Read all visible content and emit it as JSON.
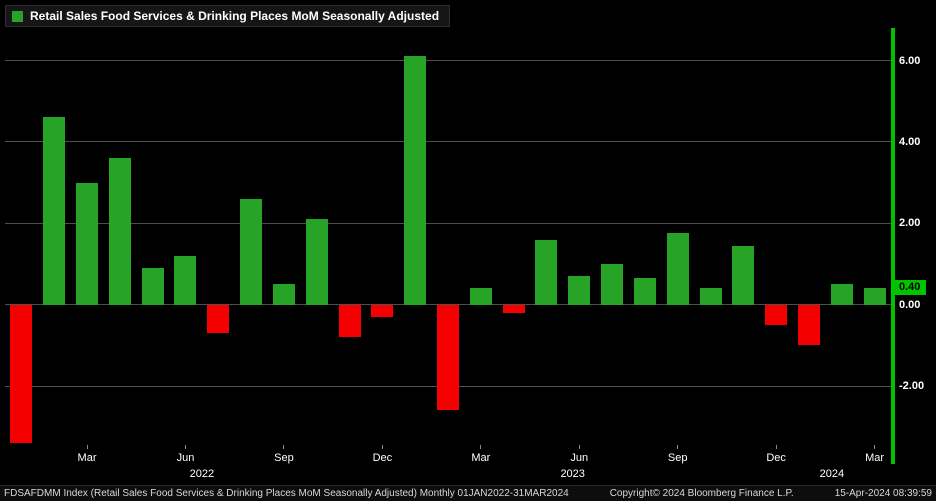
{
  "colors": {
    "background": "#000000",
    "positive_bar": "#27a327",
    "negative_bar": "#f50000",
    "axis_line": "#00c300",
    "gridline": "#4f4f4f",
    "text": "#ffffff",
    "footer_text": "#d8d8d8",
    "last_value_text": "#000000"
  },
  "legend": {
    "label": "Retail Sales Food Services & Drinking Places MoM Seasonally Adjusted"
  },
  "footer": {
    "left": "FDSAFDMM Index (Retail Sales Food Services & Drinking Places MoM Seasonally Adjusted)  Monthly 01JAN2022-31MAR2024",
    "copyright": "Copyright© 2024 Bloomberg Finance L.P.",
    "timestamp": "15-Apr-2024 08:39:59"
  },
  "chart_data": {
    "type": "bar",
    "title": "Retail Sales Food Services & Drinking Places MoM Seasonally Adjusted",
    "xlabel": "",
    "ylabel": "",
    "x": [
      "Jan 2022",
      "Feb 2022",
      "Mar 2022",
      "Apr 2022",
      "May 2022",
      "Jun 2022",
      "Jul 2022",
      "Aug 2022",
      "Sep 2022",
      "Oct 2022",
      "Nov 2022",
      "Dec 2022",
      "Jan 2023",
      "Feb 2023",
      "Mar 2023",
      "Apr 2023",
      "May 2023",
      "Jun 2023",
      "Jul 2023",
      "Aug 2023",
      "Sep 2023",
      "Oct 2023",
      "Nov 2023",
      "Dec 2023",
      "Jan 2024",
      "Feb 2024",
      "Mar 2024"
    ],
    "values": [
      -3.4,
      4.6,
      3.0,
      3.6,
      0.9,
      1.2,
      -0.7,
      2.6,
      0.5,
      2.1,
      -0.8,
      -0.3,
      6.1,
      -2.6,
      0.4,
      -0.2,
      1.6,
      0.7,
      1.0,
      0.65,
      1.75,
      0.4,
      1.45,
      -0.5,
      -1.0,
      0.5,
      0.4
    ],
    "ylim": [
      -3.45,
      6.75
    ],
    "yticks": [
      6.0,
      4.0,
      2.0,
      0.0,
      -2.0
    ],
    "ytick_labels": [
      "6.00",
      "4.00",
      "2.00",
      "0.00",
      "-2.00"
    ],
    "last_value": 0.4,
    "last_value_label": "0.40",
    "grid": "horizontal",
    "legend_position": "top-left",
    "x_ticks": [
      {
        "pos": 2,
        "label": "Mar"
      },
      {
        "pos": 5,
        "label": "Jun"
      },
      {
        "pos": 8,
        "label": "Sep"
      },
      {
        "pos": 11,
        "label": "Dec"
      },
      {
        "pos": 14,
        "label": "Mar"
      },
      {
        "pos": 17,
        "label": "Jun"
      },
      {
        "pos": 20,
        "label": "Sep"
      },
      {
        "pos": 23,
        "label": "Dec"
      },
      {
        "pos": 26,
        "label": "Mar"
      }
    ],
    "year_labels": [
      {
        "pos": 5.5,
        "label": "2022"
      },
      {
        "pos": 16.8,
        "label": "2023"
      },
      {
        "pos": 24.7,
        "label": "2024"
      }
    ]
  }
}
